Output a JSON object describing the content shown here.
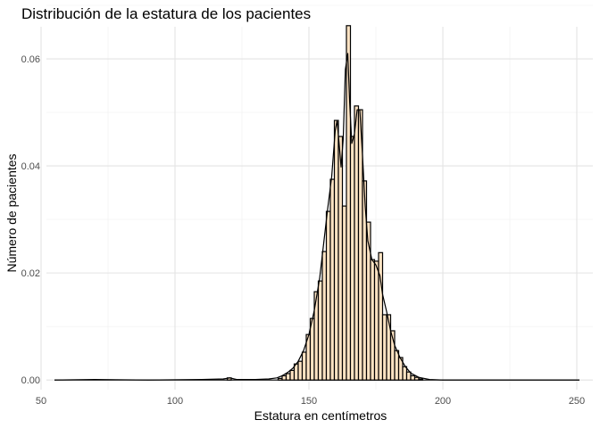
{
  "chart_data": {
    "type": "histogram",
    "title": "Distribución de la estatura de los pacientes",
    "xlabel": "Estatura en centímetros",
    "ylabel": "Número de pacientes",
    "xlim": [
      52,
      256
    ],
    "ylim": [
      -0.0018,
      0.066
    ],
    "x_ticks": [
      50,
      100,
      150,
      200,
      250
    ],
    "y_ticks": [
      0.0,
      0.02,
      0.04,
      0.06
    ],
    "x_tick_labels": [
      "50",
      "100",
      "150",
      "200",
      "250"
    ],
    "y_tick_labels": [
      "0.00",
      "0.02",
      "0.04",
      "0.06"
    ],
    "grid": true,
    "bar_fill": "#FFE4C4",
    "bar_outline": "#000000",
    "bin_width": 1.5,
    "bins": [
      {
        "x0": 119.5,
        "density": 0.0004
      },
      {
        "x0": 138.5,
        "density": 0.0003
      },
      {
        "x0": 140.0,
        "density": 0.0008
      },
      {
        "x0": 141.5,
        "density": 0.0012
      },
      {
        "x0": 143.0,
        "density": 0.0018
      },
      {
        "x0": 144.5,
        "density": 0.003
      },
      {
        "x0": 146.0,
        "density": 0.0035
      },
      {
        "x0": 147.5,
        "density": 0.0052
      },
      {
        "x0": 149.0,
        "density": 0.0085
      },
      {
        "x0": 150.5,
        "density": 0.0115
      },
      {
        "x0": 152.0,
        "density": 0.0165
      },
      {
        "x0": 153.5,
        "density": 0.0185
      },
      {
        "x0": 155.0,
        "density": 0.024
      },
      {
        "x0": 156.5,
        "density": 0.0315
      },
      {
        "x0": 158.0,
        "density": 0.0375
      },
      {
        "x0": 159.5,
        "density": 0.0485
      },
      {
        "x0": 161.0,
        "density": 0.0455
      },
      {
        "x0": 162.5,
        "density": 0.0325
      },
      {
        "x0": 164.0,
        "density": 0.0662
      },
      {
        "x0": 165.5,
        "density": 0.0455
      },
      {
        "x0": 167.0,
        "density": 0.0512
      },
      {
        "x0": 168.5,
        "density": 0.0505
      },
      {
        "x0": 170.0,
        "density": 0.0372
      },
      {
        "x0": 171.5,
        "density": 0.0295
      },
      {
        "x0": 173.0,
        "density": 0.0225
      },
      {
        "x0": 174.5,
        "density": 0.0222
      },
      {
        "x0": 176.0,
        "density": 0.0238
      },
      {
        "x0": 177.5,
        "density": 0.0122
      },
      {
        "x0": 179.0,
        "density": 0.0122
      },
      {
        "x0": 180.5,
        "density": 0.0092
      },
      {
        "x0": 182.0,
        "density": 0.0055
      },
      {
        "x0": 183.5,
        "density": 0.0042
      },
      {
        "x0": 185.0,
        "density": 0.0025
      },
      {
        "x0": 186.5,
        "density": 0.0015
      },
      {
        "x0": 188.0,
        "density": 0.0008
      },
      {
        "x0": 189.5,
        "density": 0.0005
      },
      {
        "x0": 191.0,
        "density": 0.0002
      }
    ],
    "density_curve": {
      "x": [
        55,
        70,
        90,
        110,
        118,
        120.5,
        123,
        130,
        135,
        138,
        140,
        142,
        144,
        146,
        148,
        150,
        152,
        154,
        155.5,
        157,
        158.5,
        159.8,
        160.5,
        161.3,
        162.0,
        162.8,
        163.6,
        164.5,
        165.2,
        166.0,
        167.0,
        168.0,
        169.0,
        170.0,
        171.0,
        172.0,
        173.5,
        175.0,
        176.5,
        177.5,
        179.0,
        180.5,
        182.0,
        184.0,
        186.0,
        188.0,
        191.0,
        195.0,
        200.0,
        220.0,
        251.0
      ],
      "y": [
        0.0,
        0.0001,
        0.0,
        0.0001,
        0.0002,
        0.0004,
        0.0001,
        0.0001,
        0.0002,
        0.0004,
        0.0008,
        0.0014,
        0.0022,
        0.0035,
        0.0055,
        0.0085,
        0.013,
        0.019,
        0.0255,
        0.032,
        0.038,
        0.0465,
        0.0485,
        0.044,
        0.0398,
        0.045,
        0.058,
        0.061,
        0.052,
        0.0442,
        0.046,
        0.0505,
        0.0505,
        0.042,
        0.0325,
        0.026,
        0.0225,
        0.0215,
        0.0195,
        0.016,
        0.0128,
        0.0092,
        0.0065,
        0.0042,
        0.0025,
        0.0013,
        0.0005,
        0.0001,
        0.0,
        0.0,
        0.0
      ]
    }
  }
}
